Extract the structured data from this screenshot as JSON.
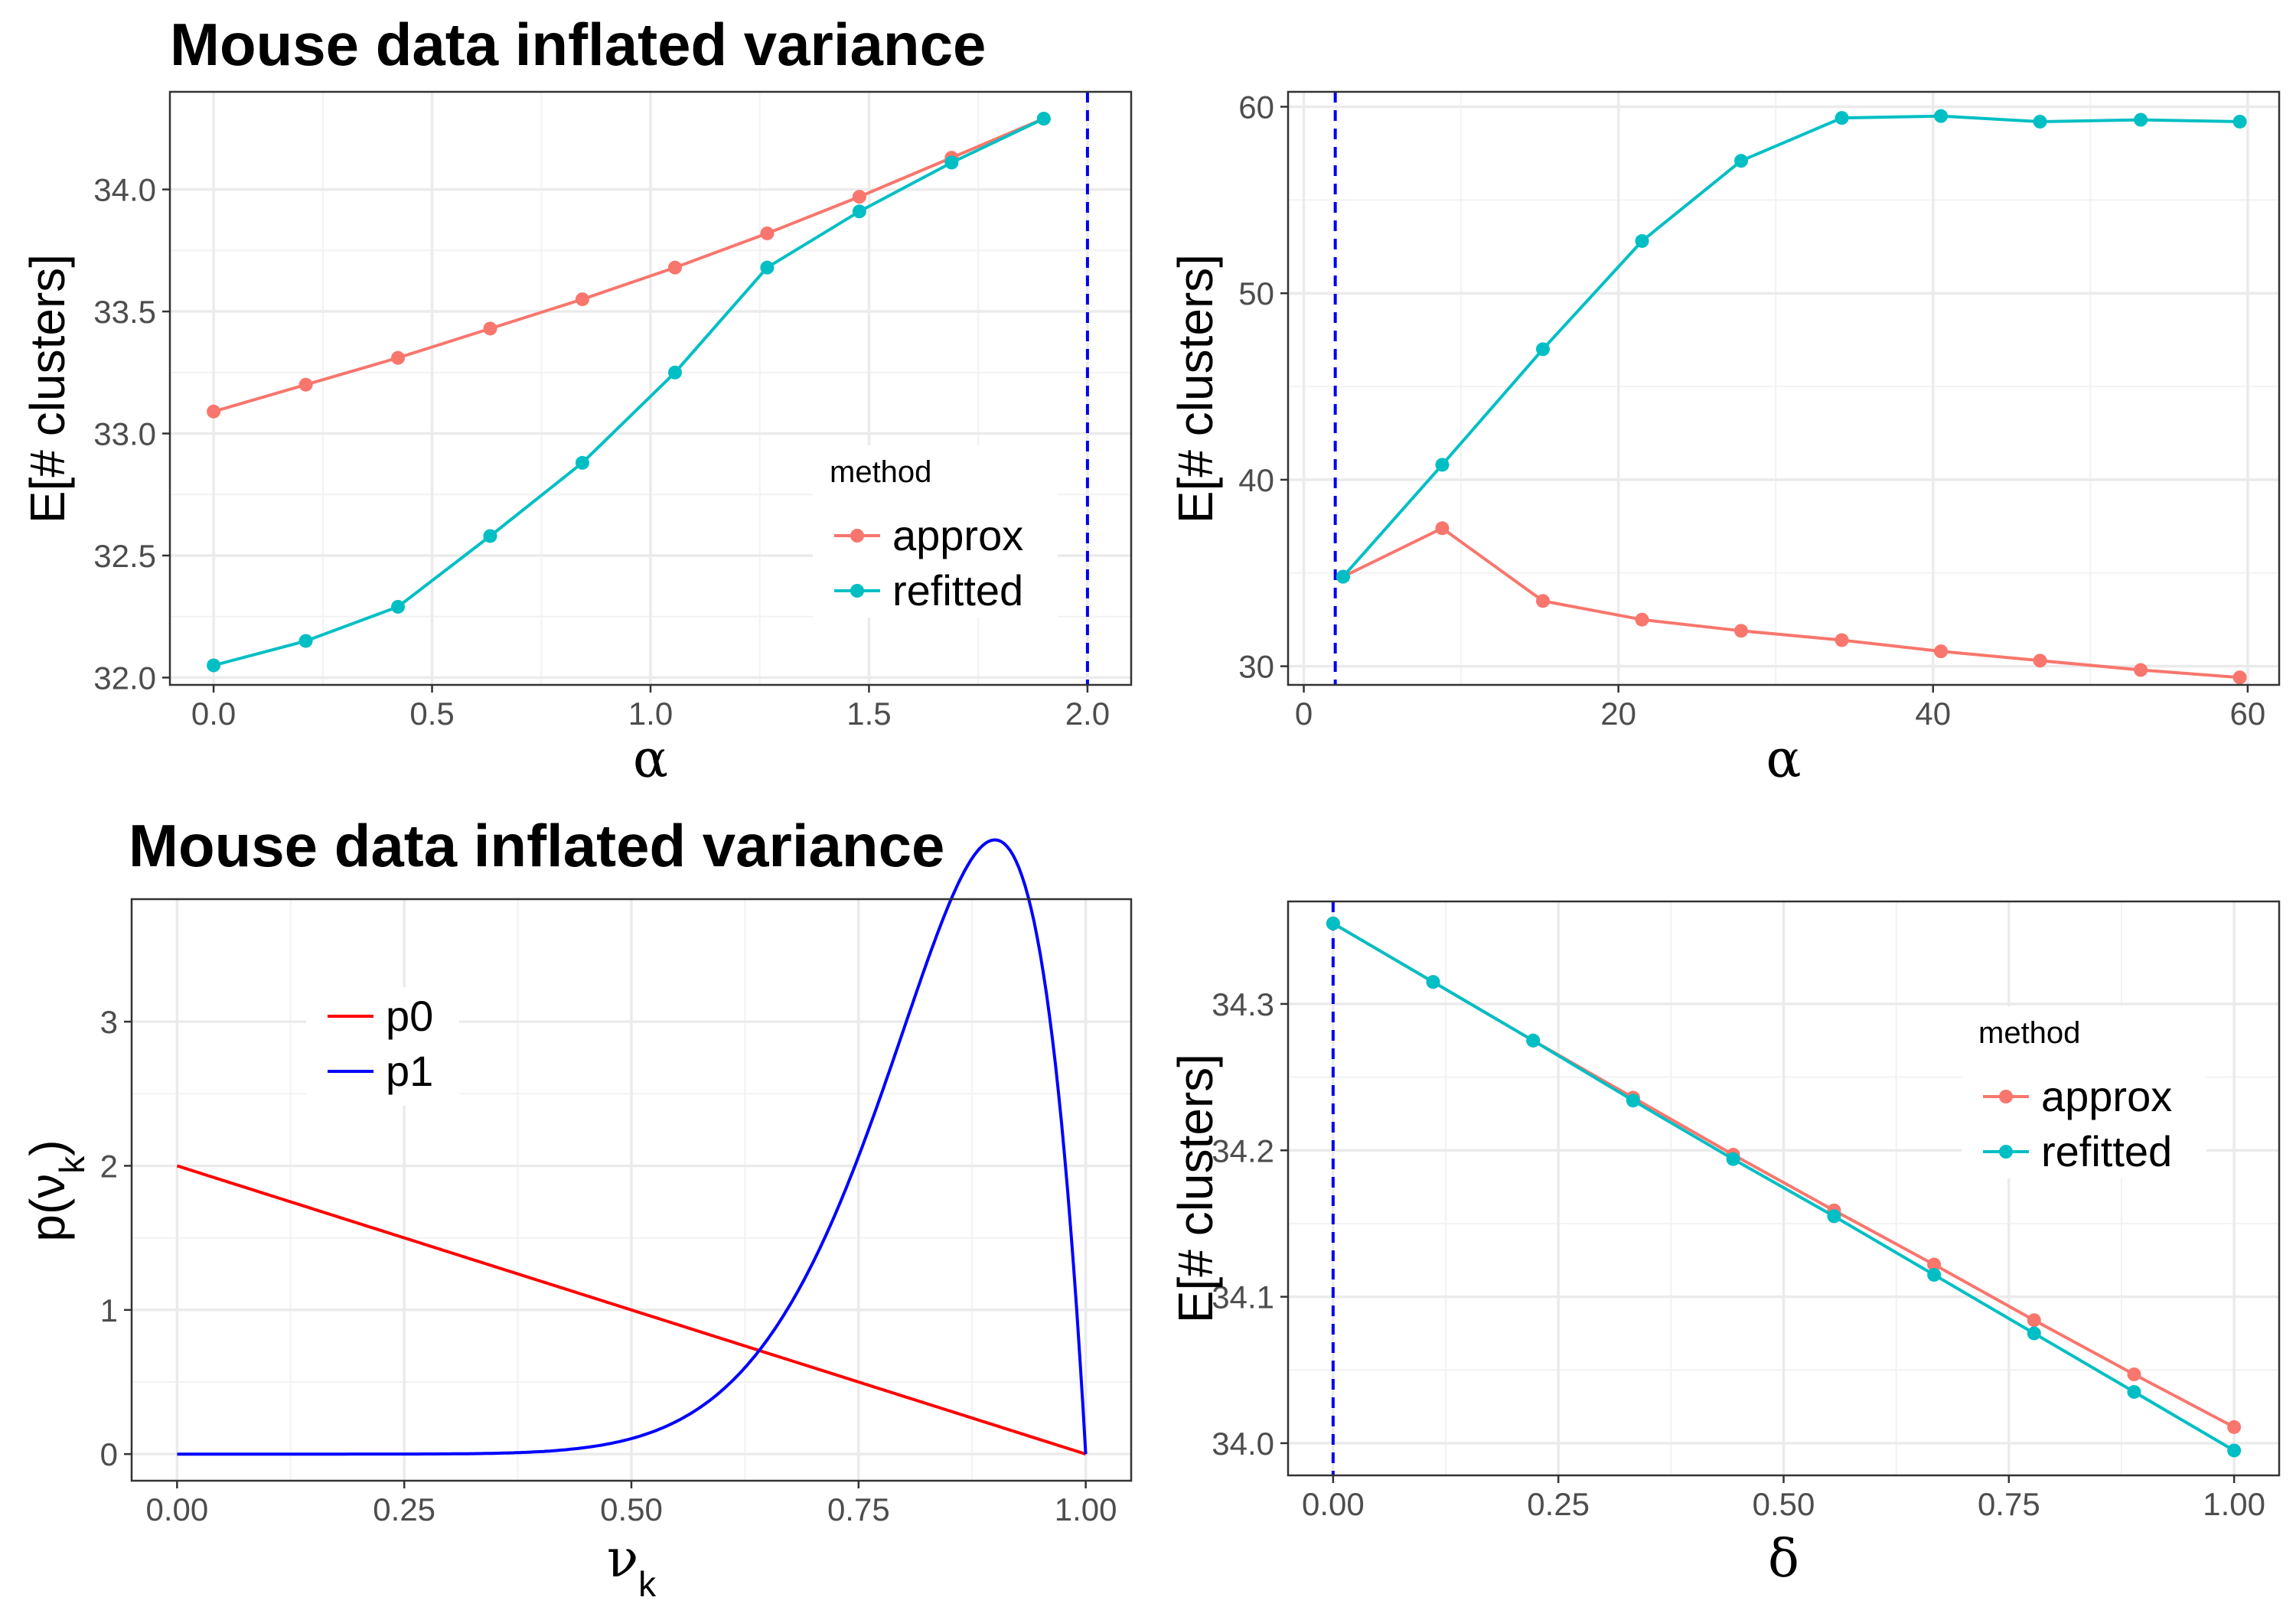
{
  "chart_data": [
    {
      "type": "line",
      "title": "Mouse data inflated variance",
      "xlabel": "α",
      "ylabel": "E[# clusters]",
      "xlim": [
        -0.1,
        2.1
      ],
      "ylim": [
        31.97,
        34.4
      ],
      "xticks": [
        0.0,
        0.5,
        1.0,
        1.5,
        2.0
      ],
      "xtick_labels": [
        "0.0",
        "0.5",
        "1.0",
        "1.5",
        "2.0"
      ],
      "yticks": [
        32.0,
        32.5,
        33.0,
        33.5,
        34.0
      ],
      "ytick_labels": [
        "32.0",
        "32.5",
        "33.0",
        "33.5",
        "34.0"
      ],
      "vline": 2.0,
      "legend": {
        "title": "method",
        "position": "right-center"
      },
      "x": [
        0.0,
        0.211,
        0.422,
        0.633,
        0.844,
        1.056,
        1.267,
        1.478,
        1.689,
        1.9
      ],
      "series": [
        {
          "name": "approx",
          "color": "#F8766D",
          "values": [
            33.09,
            33.2,
            33.31,
            33.43,
            33.55,
            33.68,
            33.82,
            33.97,
            34.13,
            34.29
          ]
        },
        {
          "name": "refitted",
          "color": "#00BFC4",
          "values": [
            32.05,
            32.15,
            32.29,
            32.58,
            32.88,
            33.25,
            33.68,
            33.91,
            34.11,
            34.29
          ]
        }
      ]
    },
    {
      "type": "line",
      "title": "",
      "xlabel": "α",
      "ylabel": "E[# clusters]",
      "xlim": [
        -1,
        62
      ],
      "ylim": [
        29,
        60.8
      ],
      "xticks": [
        0,
        20,
        40,
        60
      ],
      "xtick_labels": [
        "0",
        "20",
        "40",
        "60"
      ],
      "yticks": [
        30,
        40,
        50,
        60
      ],
      "ytick_labels": [
        "30",
        "40",
        "50",
        "60"
      ],
      "vline": 2.0,
      "x": [
        2.5,
        8.8,
        15.2,
        21.5,
        27.8,
        34.2,
        40.5,
        46.8,
        53.2,
        59.5
      ],
      "series": [
        {
          "name": "approx",
          "color": "#F8766D",
          "values": [
            34.8,
            37.4,
            33.5,
            32.5,
            31.9,
            31.4,
            30.8,
            30.3,
            29.8,
            29.4
          ]
        },
        {
          "name": "refitted",
          "color": "#00BFC4",
          "values": [
            34.8,
            40.8,
            47.0,
            52.8,
            57.1,
            59.4,
            59.5,
            59.2,
            59.3,
            59.2
          ]
        }
      ]
    },
    {
      "type": "line",
      "title": "Mouse data inflated variance",
      "xlabel": "ν",
      "xlabel_sub": "k",
      "ylabel": "p(ν",
      "ylabel_sub": "k",
      "ylabel_end": ")",
      "xlim": [
        -0.05,
        1.05
      ],
      "ylim": [
        -0.185,
        3.85
      ],
      "xticks": [
        0.0,
        0.25,
        0.5,
        0.75,
        1.0
      ],
      "xtick_labels": [
        "0.00",
        "0.25",
        "0.50",
        "0.75",
        "1.00"
      ],
      "yticks": [
        0,
        1,
        2,
        3
      ],
      "ytick_labels": [
        "0",
        "1",
        "2",
        "3"
      ],
      "legend": {
        "position": "top-left"
      },
      "series": [
        {
          "name": "p0",
          "color": "#FF0000",
          "beta": [
            1,
            2
          ]
        },
        {
          "name": "p1",
          "color": "#0000FF",
          "beta": [
            10,
            2
          ]
        }
      ]
    },
    {
      "type": "line",
      "title": "",
      "xlabel": "δ",
      "ylabel": "E[# clusters]",
      "xlim": [
        -0.05,
        1.05
      ],
      "ylim": [
        33.978,
        34.37
      ],
      "xticks": [
        0.0,
        0.25,
        0.5,
        0.75,
        1.0
      ],
      "xtick_labels": [
        "0.00",
        "0.25",
        "0.50",
        "0.75",
        "1.00"
      ],
      "yticks": [
        34.0,
        34.1,
        34.2,
        34.3
      ],
      "ytick_labels": [
        "34.0",
        "34.1",
        "34.2",
        "34.3"
      ],
      "vline": 0.0,
      "legend": {
        "title": "method",
        "position": "right-center"
      },
      "x": [
        0.0,
        0.111,
        0.222,
        0.333,
        0.444,
        0.556,
        0.667,
        0.778,
        0.889,
        1.0
      ],
      "series": [
        {
          "name": "approx",
          "color": "#F8766D",
          "values": [
            34.355,
            34.315,
            34.275,
            34.236,
            34.197,
            34.159,
            34.122,
            34.084,
            34.047,
            34.011
          ]
        },
        {
          "name": "refitted",
          "color": "#00BFC4",
          "values": [
            34.355,
            34.315,
            34.275,
            34.234,
            34.194,
            34.155,
            34.115,
            34.075,
            34.035,
            33.995
          ]
        }
      ]
    }
  ]
}
